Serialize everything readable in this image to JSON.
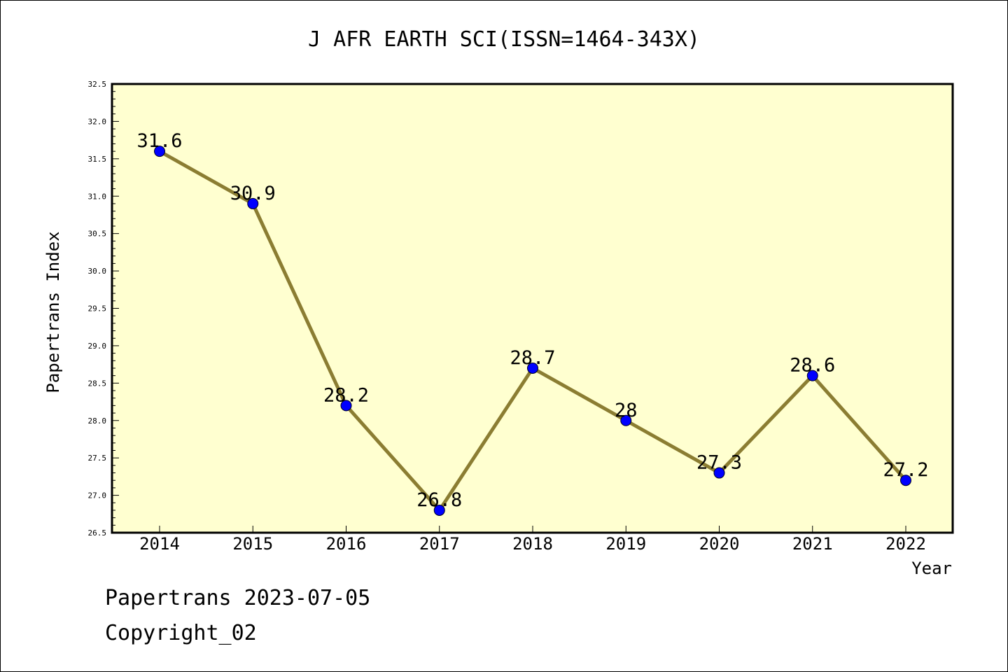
{
  "chart_data": {
    "type": "line",
    "title": "J AFR EARTH SCI(ISSN=1464-343X)",
    "xlabel": "Year",
    "ylabel": "Papertrans Index",
    "categories": [
      "2014",
      "2015",
      "2016",
      "2017",
      "2018",
      "2019",
      "2020",
      "2021",
      "2022"
    ],
    "values": [
      31.6,
      30.9,
      28.2,
      26.8,
      28.7,
      28.0,
      27.3,
      28.6,
      27.2
    ],
    "data_labels": [
      "31.6",
      "30.9",
      "28.2",
      "26.8",
      "28.7",
      "28",
      "27.3",
      "28.6",
      "27.2"
    ],
    "ylim": [
      26.5,
      32.5
    ],
    "yticks": [
      "26.5",
      "27.0",
      "27.5",
      "28.0",
      "28.5",
      "29.0",
      "29.5",
      "30.0",
      "30.5",
      "31.0",
      "31.5",
      "32.0",
      "32.5"
    ],
    "grid": false,
    "colors": {
      "plot_background": "#ffffd0",
      "line": "#8b7d32",
      "marker": "#0000ff"
    }
  },
  "footer": {
    "line1": "Papertrans 2023-07-05",
    "line2": "Copyright_02"
  }
}
